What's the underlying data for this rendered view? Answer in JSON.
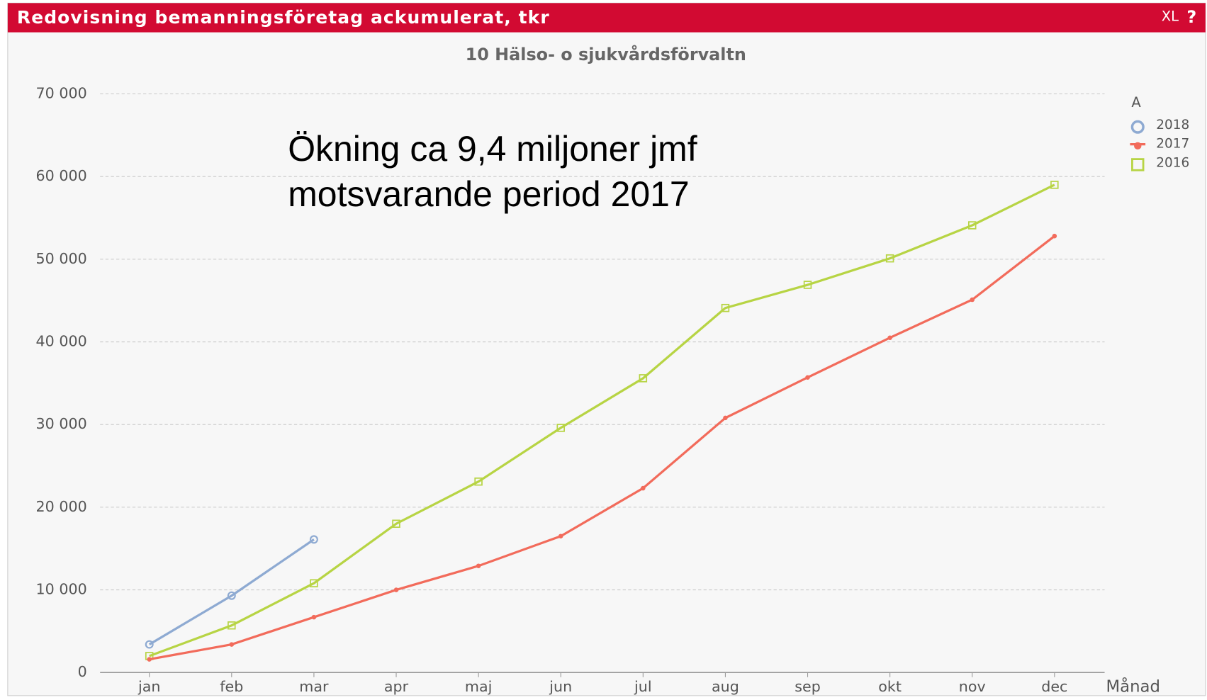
{
  "window": {
    "title": "Redovisning bemanningsföretag ackumulerat, tkr",
    "buttons": [
      "XL",
      "?"
    ]
  },
  "chart_data": {
    "type": "line",
    "title": "10 Hälso- o sjukvårdsförvaltn",
    "annotation": [
      "Ökning ca 9,4 miljoner jmf",
      "motsvarande period 2017"
    ],
    "xlabel": "Månad",
    "categories": [
      "jan",
      "feb",
      "mar",
      "apr",
      "maj",
      "jun",
      "jul",
      "aug",
      "sep",
      "okt",
      "nov",
      "dec"
    ],
    "series": [
      {
        "name": "2018",
        "color": "#8eaad2",
        "marker": "circle",
        "values": [
          3400,
          9300,
          16100,
          null,
          null,
          null,
          null,
          null,
          null,
          null,
          null,
          null
        ]
      },
      {
        "name": "2017",
        "color": "#f26b5b",
        "marker": "dot",
        "values": [
          1600,
          3400,
          6700,
          10000,
          12900,
          16500,
          22300,
          30800,
          35700,
          40500,
          45100,
          52800
        ]
      },
      {
        "name": "2016",
        "color": "#b7d444",
        "marker": "square",
        "values": [
          2000,
          5700,
          10800,
          18000,
          23100,
          29600,
          35600,
          44100,
          46900,
          50100,
          54100,
          59000
        ]
      }
    ],
    "ylim": [
      0,
      70000
    ],
    "yticks": [
      0,
      {
        "value": 10000,
        "label": "10 000"
      },
      {
        "value": 20000,
        "label": "20 000"
      },
      {
        "value": 30000,
        "label": "30 000"
      },
      {
        "value": 40000,
        "label": "40 000"
      },
      {
        "value": 50000,
        "label": "50 000"
      },
      {
        "value": 60000,
        "label": "60 000"
      },
      {
        "value": 70000,
        "label": "70 000"
      }
    ],
    "grid": true,
    "legend": "right"
  }
}
